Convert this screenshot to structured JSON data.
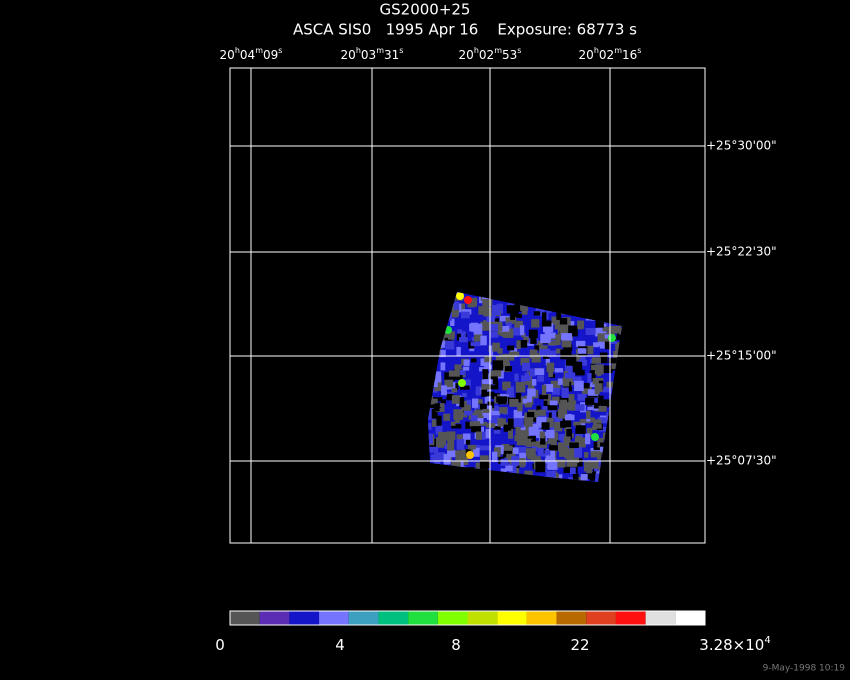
{
  "title": "GS2000+25",
  "subtitle": "ASCA SIS0   1995 Apr 16    Exposure: 68773 s",
  "ra_labels": [
    [
      "20",
      "h",
      "04",
      "m",
      "09",
      "s"
    ],
    [
      "20",
      "h",
      "03",
      "m",
      "31",
      "s"
    ],
    [
      "20",
      "h",
      "02",
      "m",
      "53",
      "s"
    ],
    [
      "20",
      "h",
      "02",
      "m",
      "16",
      "s"
    ]
  ],
  "dec_labels": [
    "+25°30'00\"",
    "+25°22'30\"",
    "+25°15'00\"",
    "+25°07'30\""
  ],
  "colorbar": {
    "colors": [
      "#555555",
      "#5a2db4",
      "#1414c8",
      "#7474ff",
      "#3ea0c0",
      "#00c080",
      "#20e040",
      "#80ff00",
      "#c0e000",
      "#ffff00",
      "#ffc400",
      "#b86a00",
      "#e04020",
      "#ff1010",
      "#e0e0e0",
      "#ffffff"
    ],
    "labels": [
      [
        "0"
      ],
      [
        "4"
      ],
      [
        "8"
      ],
      [
        "22"
      ],
      [
        "3.28×10",
        "4"
      ]
    ]
  },
  "footer": "9-May-1998 10:19"
}
